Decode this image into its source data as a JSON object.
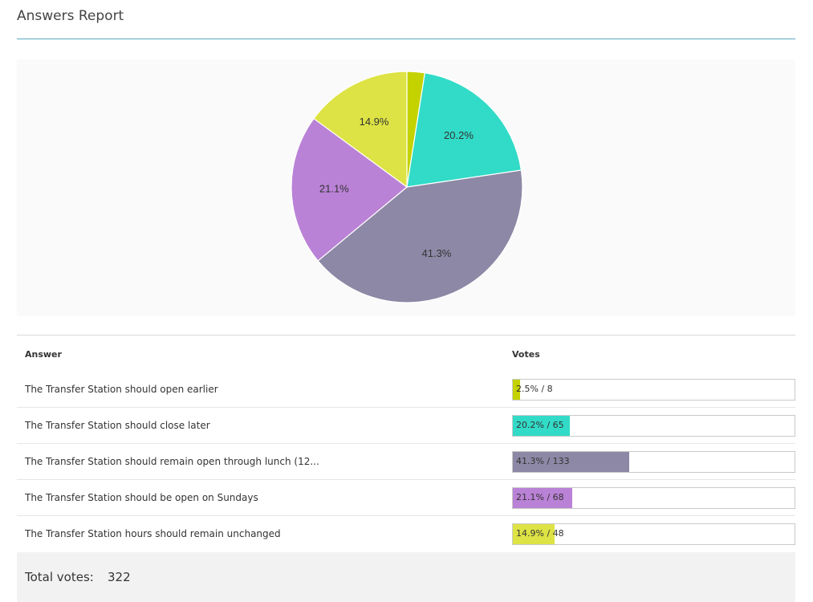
{
  "header": {
    "title": "Answers Report"
  },
  "chart_data": {
    "type": "pie",
    "title": "Answers Report",
    "categories": [
      "The Transfer Station should open earlier",
      "The Transfer Station should close later",
      "The Transfer Station should remain open through lunch (12...",
      "The Transfer Station should be open on Sundays",
      "The Transfer Station hours should remain unchanged"
    ],
    "values": [
      8,
      65,
      133,
      68,
      48
    ],
    "percent_labels": [
      "2.5%",
      "20.2%",
      "41.3%",
      "21.1%",
      "14.9%"
    ],
    "colors": [
      "#c4d200",
      "#31dbc7",
      "#8c88a5",
      "#ba82d6",
      "#dde344"
    ],
    "legend": "none"
  },
  "table": {
    "col_answer": "Answer",
    "col_votes": "Votes",
    "rows": [
      {
        "answer": "The Transfer Station should open earlier",
        "fraction": 0.025,
        "label": "2.5% / 8"
      },
      {
        "answer": "The Transfer Station should close later",
        "fraction": 0.202,
        "label": "20.2% / 65"
      },
      {
        "answer": "The Transfer Station should remain open through lunch (12...",
        "fraction": 0.413,
        "label": "41.3% / 133"
      },
      {
        "answer": "The Transfer Station should be open on Sundays",
        "fraction": 0.211,
        "label": "21.1% / 68"
      },
      {
        "answer": "The Transfer Station hours should remain unchanged",
        "fraction": 0.149,
        "label": "14.9% / 48"
      }
    ]
  },
  "footer": {
    "total_label": "Total votes:",
    "total_value": "322"
  }
}
